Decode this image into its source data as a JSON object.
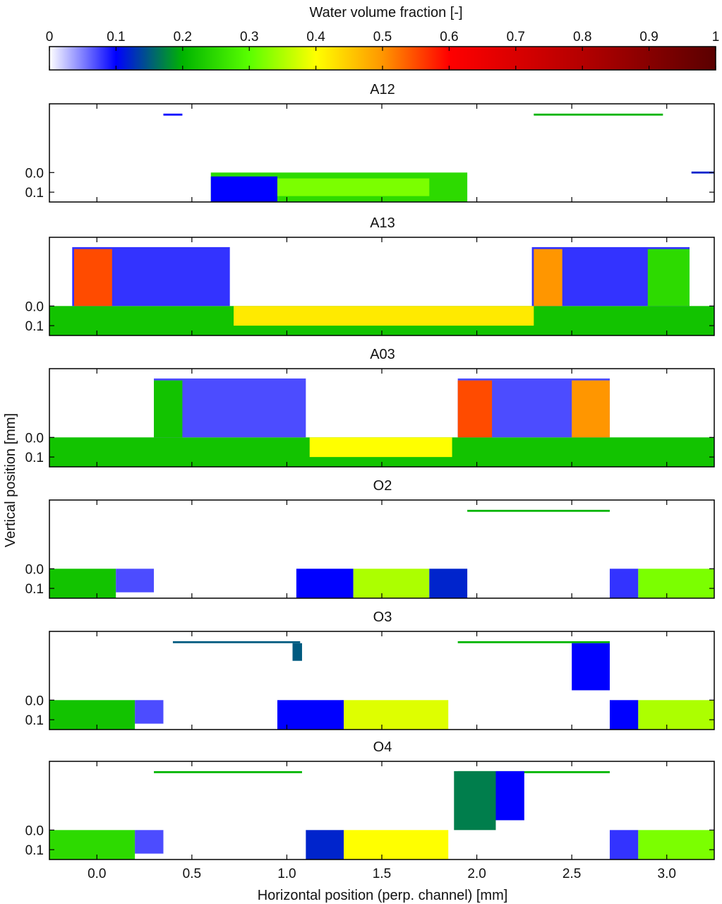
{
  "chart_data": {
    "type": "heatmap",
    "colorbar": {
      "label": "Water volume fraction [-]",
      "range": [
        0,
        1
      ],
      "ticks": [
        0,
        0.1,
        0.2,
        0.3,
        0.4,
        0.5,
        0.6,
        0.7,
        0.8,
        0.9,
        1
      ],
      "tick_labels": [
        "0",
        "0.1",
        "0.2",
        "0.3",
        "0.4",
        "0.5",
        "0.6",
        "0.7",
        "0.8",
        "0.9",
        "1"
      ],
      "colors": [
        {
          "v": 0.0,
          "c": "#ffffff"
        },
        {
          "v": 0.1,
          "c": "#0000ff"
        },
        {
          "v": 0.2,
          "c": "#00b400"
        },
        {
          "v": 0.3,
          "c": "#5aff00"
        },
        {
          "v": 0.4,
          "c": "#ffff00"
        },
        {
          "v": 0.5,
          "c": "#ff9600"
        },
        {
          "v": 0.6,
          "c": "#ff0000"
        },
        {
          "v": 0.8,
          "c": "#b40000"
        },
        {
          "v": 1.0,
          "c": "#5a0000"
        }
      ]
    },
    "xlabel": "Horizontal position (perp. channel) [mm]",
    "ylabel": "Vertical position [mm]",
    "xlim": [
      -0.25,
      3.25
    ],
    "x_ticks": [
      0.0,
      0.5,
      1.0,
      1.5,
      2.0,
      2.5,
      3.0
    ],
    "x_tick_labels": [
      "0.0",
      "0.5",
      "1.0",
      "1.5",
      "2.0",
      "2.5",
      "3.0"
    ],
    "y_ticks": [
      0.0,
      0.1
    ],
    "y_tick_labels": [
      "0.0",
      "0.1"
    ],
    "panels": [
      {
        "title": "A12",
        "regions": [
          {
            "x0": 0.6,
            "x1": 1.95,
            "y0": 0.0,
            "y1": 0.15,
            "value": 0.25
          },
          {
            "x0": 0.95,
            "x1": 1.75,
            "y0": 0.03,
            "y1": 0.12,
            "value": 0.32
          },
          {
            "x0": 0.6,
            "x1": 0.95,
            "y0": 0.02,
            "y1": 0.15,
            "value": 0.1
          },
          {
            "x0": 2.3,
            "x1": 2.98,
            "y0": -0.3,
            "y1": -0.29,
            "value": 0.2
          },
          {
            "x0": 0.35,
            "x1": 0.45,
            "y0": -0.3,
            "y1": -0.29,
            "value": 0.1
          },
          {
            "x0": 3.13,
            "x1": 3.25,
            "y0": -0.005,
            "y1": 0.005,
            "value": 0.12
          }
        ]
      },
      {
        "title": "A13",
        "regions": [
          {
            "x0": -0.25,
            "x1": 3.25,
            "y0": 0.0,
            "y1": 0.15,
            "value": 0.22
          },
          {
            "x0": 0.72,
            "x1": 2.3,
            "y0": 0.0,
            "y1": 0.1,
            "value": 0.42
          },
          {
            "x0": -0.13,
            "x1": 0.7,
            "y0": -0.3,
            "y1": 0.0,
            "value": 0.08
          },
          {
            "x0": -0.12,
            "x1": 0.08,
            "y0": -0.29,
            "y1": 0.0,
            "value": 0.55
          },
          {
            "x0": 2.29,
            "x1": 3.12,
            "y0": -0.3,
            "y1": 0.0,
            "value": 0.08
          },
          {
            "x0": 2.3,
            "x1": 2.45,
            "y0": -0.29,
            "y1": 0.0,
            "value": 0.5
          },
          {
            "x0": 2.9,
            "x1": 3.12,
            "y0": -0.29,
            "y1": 0.0,
            "value": 0.25
          }
        ]
      },
      {
        "title": "A03",
        "regions": [
          {
            "x0": -0.25,
            "x1": 3.25,
            "y0": 0.0,
            "y1": 0.15,
            "value": 0.22
          },
          {
            "x0": 1.12,
            "x1": 1.87,
            "y0": 0.0,
            "y1": 0.1,
            "value": 0.4
          },
          {
            "x0": 0.3,
            "x1": 1.1,
            "y0": -0.3,
            "y1": 0.0,
            "value": 0.07
          },
          {
            "x0": 0.3,
            "x1": 0.45,
            "y0": -0.29,
            "y1": 0.0,
            "value": 0.22
          },
          {
            "x0": 1.9,
            "x1": 2.7,
            "y0": -0.3,
            "y1": 0.0,
            "value": 0.07
          },
          {
            "x0": 1.9,
            "x1": 2.08,
            "y0": -0.29,
            "y1": 0.0,
            "value": 0.55
          },
          {
            "x0": 2.5,
            "x1": 2.7,
            "y0": -0.29,
            "y1": 0.0,
            "value": 0.5
          }
        ]
      },
      {
        "title": "O2",
        "regions": [
          {
            "x0": -0.25,
            "x1": 0.1,
            "y0": 0.0,
            "y1": 0.15,
            "value": 0.22
          },
          {
            "x0": 0.1,
            "x1": 0.3,
            "y0": 0.0,
            "y1": 0.12,
            "value": 0.07
          },
          {
            "x0": 1.05,
            "x1": 1.35,
            "y0": 0.0,
            "y1": 0.15,
            "value": 0.1
          },
          {
            "x0": 1.35,
            "x1": 1.75,
            "y0": 0.0,
            "y1": 0.15,
            "value": 0.35
          },
          {
            "x0": 1.75,
            "x1": 1.95,
            "y0": 0.0,
            "y1": 0.15,
            "value": 0.12
          },
          {
            "x0": 2.7,
            "x1": 2.85,
            "y0": 0.0,
            "y1": 0.15,
            "value": 0.08
          },
          {
            "x0": 2.85,
            "x1": 3.25,
            "y0": 0.0,
            "y1": 0.15,
            "value": 0.32
          },
          {
            "x0": 1.95,
            "x1": 2.7,
            "y0": -0.3,
            "y1": -0.29,
            "value": 0.2
          }
        ]
      },
      {
        "title": "O3",
        "regions": [
          {
            "x0": -0.25,
            "x1": 0.2,
            "y0": 0.0,
            "y1": 0.15,
            "value": 0.22
          },
          {
            "x0": 0.2,
            "x1": 0.35,
            "y0": 0.0,
            "y1": 0.12,
            "value": 0.07
          },
          {
            "x0": 0.95,
            "x1": 1.3,
            "y0": 0.0,
            "y1": 0.15,
            "value": 0.1
          },
          {
            "x0": 1.3,
            "x1": 1.85,
            "y0": 0.0,
            "y1": 0.15,
            "value": 0.38
          },
          {
            "x0": 2.7,
            "x1": 2.85,
            "y0": 0.0,
            "y1": 0.15,
            "value": 0.1
          },
          {
            "x0": 2.85,
            "x1": 3.25,
            "y0": 0.0,
            "y1": 0.15,
            "value": 0.35
          },
          {
            "x0": 0.4,
            "x1": 1.07,
            "y0": -0.3,
            "y1": -0.29,
            "value": 0.15
          },
          {
            "x0": 1.9,
            "x1": 2.7,
            "y0": -0.3,
            "y1": -0.29,
            "value": 0.2
          },
          {
            "x0": 1.03,
            "x1": 1.08,
            "y0": -0.29,
            "y1": -0.2,
            "value": 0.15
          },
          {
            "x0": 2.5,
            "x1": 2.7,
            "y0": -0.29,
            "y1": -0.05,
            "value": 0.1
          }
        ]
      },
      {
        "title": "O4",
        "regions": [
          {
            "x0": -0.25,
            "x1": 0.2,
            "y0": 0.0,
            "y1": 0.15,
            "value": 0.25
          },
          {
            "x0": 0.2,
            "x1": 0.35,
            "y0": 0.0,
            "y1": 0.12,
            "value": 0.07
          },
          {
            "x0": 1.1,
            "x1": 1.3,
            "y0": 0.0,
            "y1": 0.15,
            "value": 0.12
          },
          {
            "x0": 1.3,
            "x1": 1.85,
            "y0": 0.0,
            "y1": 0.15,
            "value": 0.4
          },
          {
            "x0": 2.7,
            "x1": 2.85,
            "y0": 0.0,
            "y1": 0.15,
            "value": 0.08
          },
          {
            "x0": 2.85,
            "x1": 3.25,
            "y0": 0.0,
            "y1": 0.15,
            "value": 0.32
          },
          {
            "x0": 0.3,
            "x1": 1.08,
            "y0": -0.3,
            "y1": -0.29,
            "value": 0.2
          },
          {
            "x0": 1.9,
            "x1": 2.7,
            "y0": -0.3,
            "y1": -0.29,
            "value": 0.2
          },
          {
            "x0": 1.88,
            "x1": 2.1,
            "y0": -0.3,
            "y1": 0.0,
            "value": 0.17
          },
          {
            "x0": 2.1,
            "x1": 2.25,
            "y0": -0.3,
            "y1": -0.05,
            "value": 0.1
          }
        ]
      }
    ]
  }
}
